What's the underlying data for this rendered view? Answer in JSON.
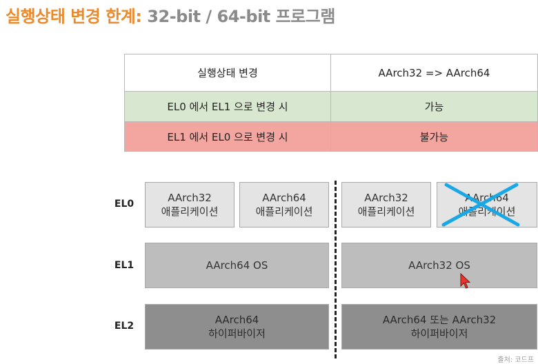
{
  "title": {
    "accent": "실행상태 변경 한계:",
    "rest": " 32-bit / 64-bit 프로그램"
  },
  "table": {
    "header": {
      "col1": "실행상태 변경",
      "col2": "AArch32 => AArch64"
    },
    "row_allowed": {
      "col1": "EL0 에서 EL1 으로 변경 시",
      "col2": "가능"
    },
    "row_denied": {
      "col1": "EL1 에서 EL0 으로 변경 시",
      "col2": "불가능"
    }
  },
  "levels": {
    "el0": "EL0",
    "el1": "EL1",
    "el2": "EL2"
  },
  "left": {
    "el0_app1": {
      "line1": "AArch32",
      "line2": "애플리케이션"
    },
    "el0_app2": {
      "line1": "AArch64",
      "line2": "애플리케이션"
    },
    "el1_os": "AArch64 OS",
    "el2_hyp": {
      "line1": "AArch64",
      "line2": "하이퍼바이저"
    }
  },
  "right": {
    "el0_app1": {
      "line1": "AArch32",
      "line2": "애플리케이션"
    },
    "el0_app2": {
      "line1": "AArch64",
      "line2": "애플리케이션",
      "crossed_out": true
    },
    "el1_os": "AArch32 OS",
    "el2_hyp": {
      "line1": "AArch64 또는 AArch32",
      "line2": "하이퍼바이저"
    }
  },
  "footnote": "출처: 코드프",
  "colors": {
    "title_accent": "#ea8a2c",
    "row_allowed": "#d8e7d0",
    "row_denied": "#f3a6a0",
    "cross": "#1aa7e6",
    "cursor": "#e8342c"
  }
}
